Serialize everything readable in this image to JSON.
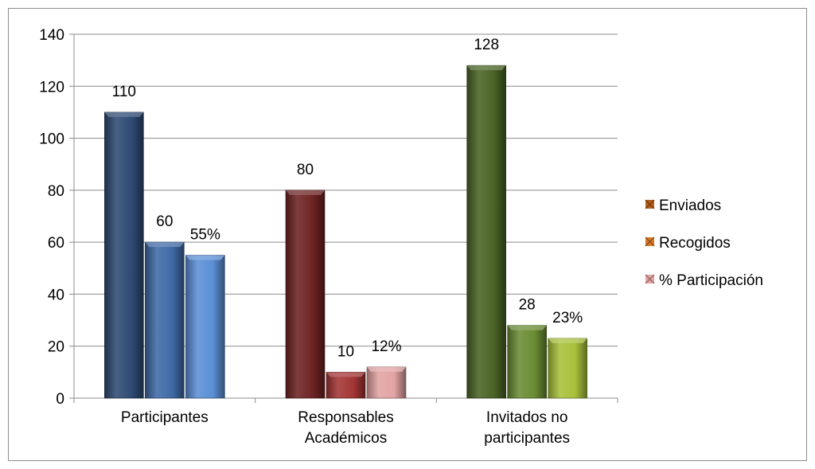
{
  "chart_data": {
    "type": "bar",
    "categories": [
      [
        "Participantes"
      ],
      [
        "Responsables",
        "Académicos"
      ],
      [
        "Invitados no",
        "participantes"
      ]
    ],
    "series": [
      {
        "name": "Enviados",
        "values": [
          110,
          80,
          128
        ],
        "labels": [
          "110",
          "80",
          "128"
        ]
      },
      {
        "name": "Recogidos",
        "values": [
          60,
          10,
          28
        ],
        "labels": [
          "60",
          "10",
          "28"
        ]
      },
      {
        "name": "%  Participación",
        "values": [
          55,
          12,
          23
        ],
        "labels": [
          "55%",
          "12%",
          "23%"
        ]
      }
    ],
    "bar_colors": [
      [
        "#2e4a73",
        "#3f6aa6",
        "#5b8fd6"
      ],
      [
        "#6e2323",
        "#a33535",
        "#e3a3a3"
      ],
      [
        "#4a6325",
        "#6a8c34",
        "#a8c03a"
      ]
    ],
    "legend_colors": [
      "#b65f1f",
      "#d9782a",
      "#e3a3a3"
    ],
    "ylim": [
      0,
      140
    ],
    "yticks": [
      0,
      20,
      40,
      60,
      80,
      100,
      120,
      140
    ],
    "gridlines": true,
    "legend_position": "right",
    "title": "",
    "xlabel": "",
    "ylabel": ""
  }
}
